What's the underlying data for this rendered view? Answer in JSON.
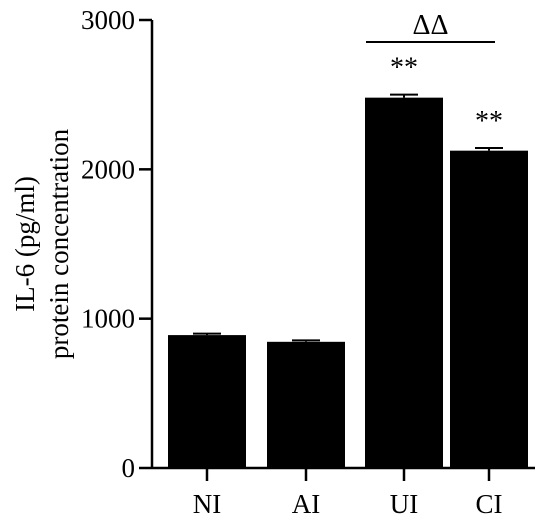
{
  "chart_data": {
    "type": "bar",
    "title": "",
    "xlabel": "",
    "ylabel_lines": [
      "IL-6 (pg/ml)",
      "protein concentration"
    ],
    "categories": [
      "NI",
      "AI",
      "UI",
      "CI"
    ],
    "values": [
      890,
      845,
      2480,
      2125
    ],
    "errors": [
      10,
      10,
      20,
      18
    ],
    "ylim": [
      0,
      3000
    ],
    "yticks": [
      0,
      1000,
      2000,
      3000
    ],
    "ytick_labels": [
      "0",
      "1000",
      "2000",
      "3000"
    ],
    "significance": [
      {
        "category": "UI",
        "text": "**"
      },
      {
        "category": "CI",
        "text": "**"
      }
    ],
    "comparison": {
      "from": "UI",
      "to": "CI",
      "text": "ΔΔ"
    },
    "grid": false,
    "colors": {
      "bar": "#000000",
      "axis": "#000000",
      "background": "#ffffff"
    }
  }
}
